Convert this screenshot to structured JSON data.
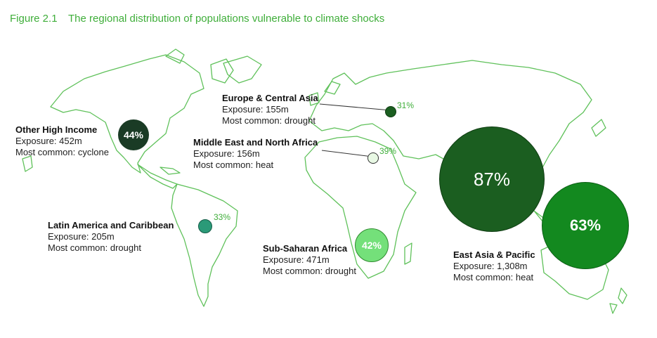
{
  "figure": {
    "number": "Figure 2.1",
    "title": "The regional distribution of populations vulnerable to climate shocks"
  },
  "colors": {
    "title": "#3fae3a",
    "outline": "#5fc15a",
    "dark_green": "#1a3b25",
    "forest_green": "#1b5e20",
    "medium_green": "#13891f",
    "teal": "#2b9a78",
    "light_green": "#74e07a",
    "pale_green": "#e8f8e4",
    "leader_line": "#333333"
  },
  "regions": [
    {
      "key": "ohi",
      "name": "Other High Income",
      "exposure": "Exposure: 452m",
      "common": "Most common: cyclone",
      "share": "44%"
    },
    {
      "key": "eca",
      "name": "Europe & Central Asia",
      "exposure": "Exposure: 155m",
      "common": "Most common: drought",
      "share": "31%"
    },
    {
      "key": "mena",
      "name": "Middle East and North Africa",
      "exposure": "Exposure: 156m",
      "common": "Most common: heat",
      "share": "39%"
    },
    {
      "key": "lac",
      "name": "Latin America and Caribbean",
      "exposure": "Exposure: 205m",
      "common": "Most common: drought",
      "share": "33%"
    },
    {
      "key": "ssa",
      "name": "Sub-Saharan Africa",
      "exposure": "Exposure: 471m",
      "common": "Most common: drought",
      "share": "42%"
    },
    {
      "key": "eap",
      "name": "East Asia & Pacific",
      "exposure": "Exposure: 1,308m",
      "common": "Most common: heat",
      "share": "63%"
    },
    {
      "key": "sa",
      "share": "87%"
    }
  ]
}
